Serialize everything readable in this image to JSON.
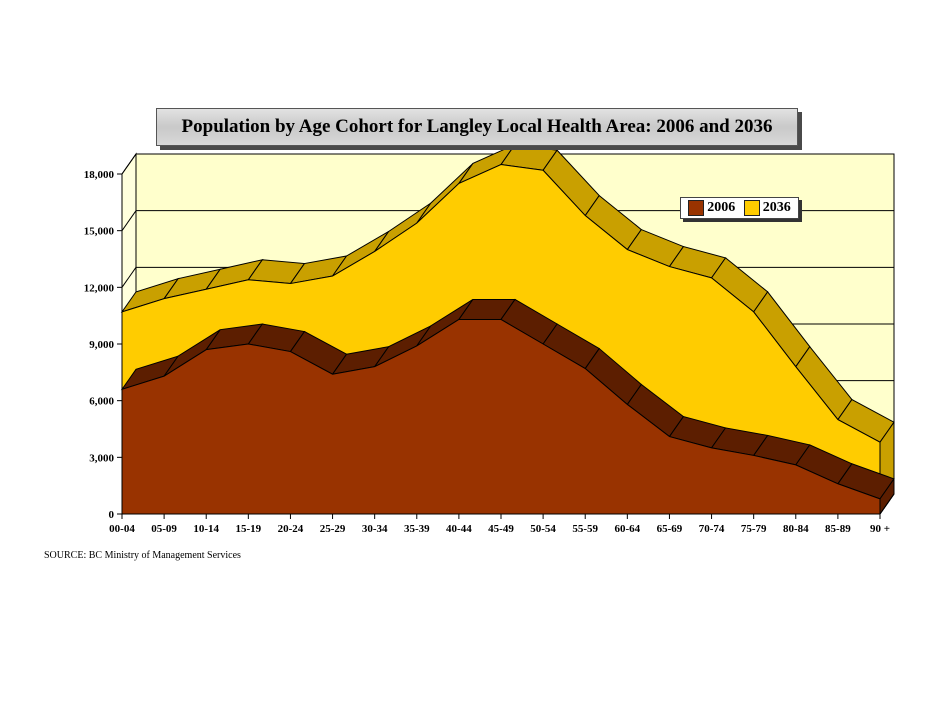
{
  "chart_data": {
    "type": "area",
    "title": "Population by Age Cohort for Langley Local Health Area:  2006 and 2036",
    "categories": [
      "00-04",
      "05-09",
      "10-14",
      "15-19",
      "20-24",
      "25-29",
      "30-34",
      "35-39",
      "40-44",
      "45-49",
      "50-54",
      "55-59",
      "60-64",
      "65-69",
      "70-74",
      "75-79",
      "80-84",
      "85-89",
      "90 +"
    ],
    "ylim": [
      0,
      18000
    ],
    "yticks": [
      0,
      3000,
      6000,
      9000,
      12000,
      15000,
      18000
    ],
    "ytick_labels": [
      "0",
      "3,000",
      "6,000",
      "9,000",
      "12,000",
      "15,000",
      "18,000"
    ],
    "grid": true,
    "legend_position": "top-right",
    "series": [
      {
        "name": "2036",
        "color": "#FFCC00",
        "top_color": "#C9A000",
        "values": [
          10700,
          11400,
          11900,
          12400,
          12200,
          12600,
          13900,
          15400,
          17500,
          18500,
          18200,
          15800,
          14000,
          13100,
          12500,
          10700,
          7800,
          5000,
          3800
        ]
      },
      {
        "name": "2006",
        "color": "#993300",
        "top_color": "#5C1E00",
        "values": [
          6600,
          7300,
          8700,
          9000,
          8600,
          7400,
          7800,
          8900,
          10300,
          10300,
          9000,
          7700,
          5800,
          4100,
          3500,
          3100,
          2600,
          1600,
          800
        ]
      }
    ],
    "legend_order": [
      "2006",
      "2036"
    ]
  },
  "source": "SOURCE:  BC Ministry of Management Services",
  "colors": {
    "plot_bg": "#FFFFCC",
    "gridline": "#000000"
  }
}
